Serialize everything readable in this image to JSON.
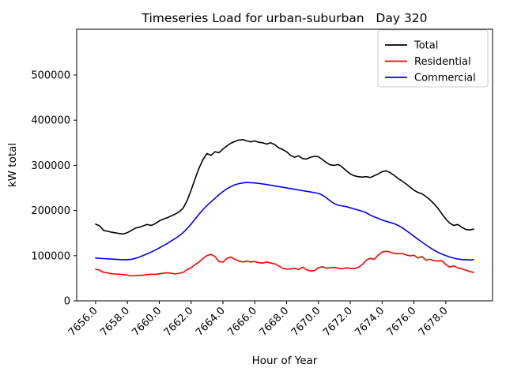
{
  "chart_data": {
    "type": "line",
    "title": "Timeseries Load for urban-suburban   Day 320",
    "xlabel": "Hour of Year",
    "ylabel": "kW total",
    "grid": false,
    "legend_position": "upper right",
    "xlim": [
      7654.8125,
      7680.9375
    ],
    "ylim": [
      0,
      601400
    ],
    "x_tick_values": [
      7656,
      7658,
      7660,
      7662,
      7664,
      7666,
      7668,
      7670,
      7672,
      7674,
      7676,
      7678
    ],
    "x_tick_labels": [
      "7656.0",
      "7658.0",
      "7660.0",
      "7662.0",
      "7664.0",
      "7666.0",
      "7668.0",
      "7670.0",
      "7672.0",
      "7674.0",
      "7676.0",
      "7678.0"
    ],
    "y_tick_values": [
      0,
      100000,
      200000,
      300000,
      400000,
      500000
    ],
    "y_tick_labels": [
      "0",
      "100000",
      "200000",
      "300000",
      "400000",
      "500000"
    ],
    "x": [
      7656.0,
      7656.25,
      7656.5,
      7656.75,
      7657.0,
      7657.25,
      7657.5,
      7657.75,
      7658.0,
      7658.25,
      7658.5,
      7658.75,
      7659.0,
      7659.25,
      7659.5,
      7659.75,
      7660.0,
      7660.25,
      7660.5,
      7660.75,
      7661.0,
      7661.25,
      7661.5,
      7661.75,
      7662.0,
      7662.25,
      7662.5,
      7662.75,
      7663.0,
      7663.25,
      7663.5,
      7663.75,
      7664.0,
      7664.25,
      7664.5,
      7664.75,
      7665.0,
      7665.25,
      7665.5,
      7665.75,
      7666.0,
      7666.25,
      7666.5,
      7666.75,
      7667.0,
      7667.25,
      7667.5,
      7667.75,
      7668.0,
      7668.25,
      7668.5,
      7668.75,
      7669.0,
      7669.25,
      7669.5,
      7669.75,
      7670.0,
      7670.25,
      7670.5,
      7670.75,
      7671.0,
      7671.25,
      7671.5,
      7671.75,
      7672.0,
      7672.25,
      7672.5,
      7672.75,
      7673.0,
      7673.25,
      7673.5,
      7673.75,
      7674.0,
      7674.25,
      7674.5,
      7674.75,
      7675.0,
      7675.25,
      7675.5,
      7675.75,
      7676.0,
      7676.25,
      7676.5,
      7676.75,
      7677.0,
      7677.25,
      7677.5,
      7677.75,
      7678.0,
      7678.25,
      7678.5,
      7678.75,
      7679.0,
      7679.25,
      7679.5,
      7679.75
    ],
    "series": [
      {
        "name": "Total",
        "color": "#000000",
        "values": [
          170000,
          166000,
          156000,
          154000,
          152000,
          150500,
          149000,
          148000,
          151000,
          156000,
          161000,
          163000,
          166000,
          169000,
          167000,
          171000,
          177000,
          181000,
          184000,
          188000,
          192000,
          197000,
          205000,
          222000,
          245000,
          270000,
          294000,
          313000,
          326000,
          322000,
          330000,
          328000,
          336000,
          343000,
          349000,
          353000,
          356000,
          357000,
          354000,
          352000,
          354000,
          351000,
          350000,
          347000,
          350000,
          346000,
          339000,
          335000,
          330000,
          322000,
          318000,
          321000,
          315000,
          314000,
          318000,
          320000,
          319000,
          313000,
          306000,
          301000,
          300000,
          302000,
          296000,
          288000,
          281000,
          277000,
          275000,
          274000,
          275000,
          273000,
          277000,
          281000,
          286000,
          288000,
          284000,
          278000,
          271000,
          265000,
          259000,
          252000,
          245000,
          240000,
          237000,
          231000,
          224000,
          215000,
          205000,
          193000,
          181000,
          172000,
          167000,
          169000,
          163000,
          158000,
          157000,
          159000
        ]
      },
      {
        "name": "Residential",
        "color": "#ff0000",
        "values": [
          70000,
          68000,
          63000,
          62000,
          60000,
          59500,
          59000,
          58000,
          57000,
          55000,
          56000,
          56500,
          57000,
          58000,
          59000,
          58500,
          60000,
          61000,
          62000,
          61000,
          59500,
          61000,
          63000,
          69000,
          73500,
          80000,
          86000,
          94000,
          100000,
          103000,
          98000,
          87000,
          85500,
          94000,
          97000,
          92000,
          88000,
          86000,
          88000,
          86000,
          87000,
          84500,
          83500,
          86000,
          83500,
          82000,
          77500,
          72000,
          70500,
          70500,
          72000,
          69000,
          74500,
          69000,
          66000,
          67000,
          73000,
          75500,
          72000,
          73500,
          74000,
          72000,
          71000,
          73000,
          72000,
          71000,
          74000,
          80000,
          90000,
          94000,
          92000,
          101000,
          108000,
          110000,
          108000,
          105000,
          104000,
          105000,
          102000,
          99500,
          101000,
          95000,
          98000,
          90000,
          92000,
          89000,
          88000,
          89000,
          80500,
          74500,
          77500,
          73000,
          71000,
          68000,
          65000,
          63000
        ]
      },
      {
        "name": "Commercial",
        "color": "#0000ff",
        "values": [
          95000,
          94000,
          93500,
          93000,
          92500,
          92000,
          91500,
          91000,
          91000,
          92000,
          94000,
          97000,
          100500,
          104000,
          108000,
          112500,
          117000,
          122000,
          127000,
          132500,
          138000,
          144000,
          151000,
          160000,
          170000,
          181000,
          192000,
          202000,
          211000,
          219000,
          227000,
          235000,
          242000,
          248000,
          253000,
          257000,
          259500,
          261000,
          262000,
          261500,
          261000,
          260000,
          259000,
          257500,
          256000,
          254500,
          253000,
          251500,
          250000,
          248500,
          247000,
          245500,
          244000,
          242500,
          241000,
          239500,
          238000,
          234000,
          228000,
          221000,
          215000,
          211500,
          210000,
          208500,
          206000,
          203500,
          201000,
          198500,
          195000,
          190000,
          186000,
          182500,
          179000,
          176000,
          173500,
          171000,
          167000,
          162000,
          156000,
          149500,
          143000,
          136500,
          130000,
          124000,
          118000,
          112500,
          107500,
          103500,
          100000,
          97000,
          94500,
          92500,
          91500,
          91000,
          90500,
          91000
        ]
      }
    ]
  }
}
